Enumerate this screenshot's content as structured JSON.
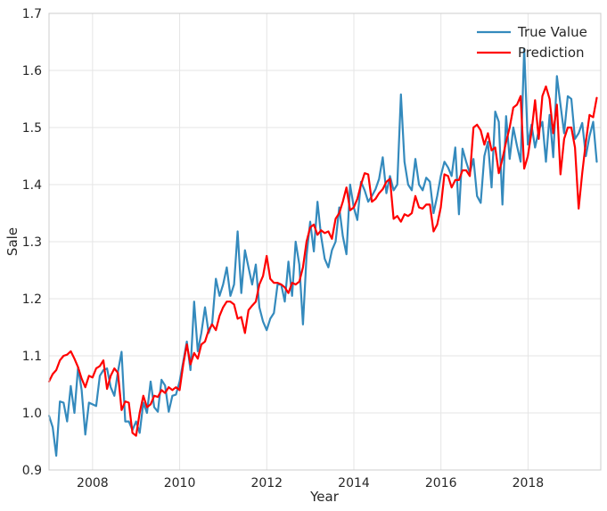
{
  "chart_data": {
    "type": "line",
    "title": "",
    "xlabel": "Year",
    "ylabel": "Sale",
    "xlim": [
      2007.0,
      2019.67
    ],
    "ylim": [
      0.9,
      1.7
    ],
    "x_ticks": [
      2008,
      2010,
      2012,
      2014,
      2016,
      2018
    ],
    "x_tick_labels": [
      "2008",
      "2010",
      "2012",
      "2014",
      "2016",
      "2018"
    ],
    "y_ticks": [
      0.9,
      1.0,
      1.1,
      1.2,
      1.3,
      1.4,
      1.5,
      1.6,
      1.7
    ],
    "y_tick_labels": [
      "0.9",
      "1.0",
      "1.1",
      "1.2",
      "1.3",
      "1.4",
      "1.5",
      "1.6",
      "1.7"
    ],
    "grid": true,
    "legend_position": "top-right",
    "x_start": 2007.0,
    "x_step": 0.0833,
    "series": [
      {
        "name": "True Value",
        "color": "#348abd",
        "values": [
          0.995,
          0.975,
          0.925,
          1.02,
          1.018,
          0.985,
          1.047,
          1.0,
          1.08,
          1.04,
          0.962,
          1.018,
          1.015,
          1.012,
          1.065,
          1.075,
          1.078,
          1.045,
          1.03,
          1.072,
          1.107,
          0.985,
          0.985,
          0.97,
          0.985,
          0.965,
          1.018,
          1.0,
          1.055,
          1.01,
          1.002,
          1.058,
          1.048,
          1.002,
          1.03,
          1.032,
          1.055,
          1.09,
          1.125,
          1.075,
          1.195,
          1.108,
          1.14,
          1.185,
          1.14,
          1.158,
          1.235,
          1.205,
          1.225,
          1.255,
          1.205,
          1.225,
          1.318,
          1.21,
          1.285,
          1.255,
          1.225,
          1.26,
          1.185,
          1.16,
          1.145,
          1.165,
          1.175,
          1.225,
          1.225,
          1.195,
          1.265,
          1.205,
          1.3,
          1.26,
          1.155,
          1.275,
          1.335,
          1.283,
          1.37,
          1.31,
          1.27,
          1.255,
          1.285,
          1.3,
          1.36,
          1.31,
          1.278,
          1.4,
          1.36,
          1.338,
          1.405,
          1.39,
          1.37,
          1.38,
          1.392,
          1.41,
          1.448,
          1.385,
          1.415,
          1.39,
          1.4,
          1.558,
          1.44,
          1.4,
          1.39,
          1.445,
          1.4,
          1.39,
          1.412,
          1.405,
          1.35,
          1.38,
          1.415,
          1.44,
          1.43,
          1.415,
          1.465,
          1.348,
          1.463,
          1.44,
          1.42,
          1.445,
          1.38,
          1.368,
          1.45,
          1.475,
          1.395,
          1.528,
          1.51,
          1.365,
          1.52,
          1.445,
          1.5,
          1.468,
          1.44,
          1.638,
          1.47,
          1.505,
          1.465,
          1.495,
          1.51,
          1.44,
          1.522,
          1.448,
          1.59,
          1.54,
          1.49,
          1.555,
          1.55,
          1.48,
          1.49,
          1.508,
          1.45,
          1.485,
          1.51,
          1.44
        ]
      },
      {
        "name": "Prediction",
        "color": "#ff0000",
        "values": [
          1.055,
          1.068,
          1.075,
          1.092,
          1.1,
          1.102,
          1.108,
          1.095,
          1.08,
          1.06,
          1.045,
          1.065,
          1.062,
          1.078,
          1.082,
          1.092,
          1.042,
          1.065,
          1.078,
          1.07,
          1.005,
          1.02,
          1.018,
          0.965,
          0.96,
          1.0,
          1.03,
          1.01,
          1.015,
          1.03,
          1.028,
          1.04,
          1.035,
          1.045,
          1.04,
          1.045,
          1.04,
          1.085,
          1.12,
          1.085,
          1.105,
          1.095,
          1.12,
          1.125,
          1.145,
          1.155,
          1.145,
          1.17,
          1.185,
          1.195,
          1.195,
          1.19,
          1.165,
          1.168,
          1.14,
          1.18,
          1.188,
          1.195,
          1.225,
          1.24,
          1.275,
          1.235,
          1.228,
          1.228,
          1.225,
          1.22,
          1.21,
          1.228,
          1.225,
          1.23,
          1.255,
          1.3,
          1.325,
          1.33,
          1.312,
          1.32,
          1.315,
          1.318,
          1.305,
          1.34,
          1.35,
          1.37,
          1.395,
          1.355,
          1.36,
          1.375,
          1.4,
          1.42,
          1.418,
          1.37,
          1.375,
          1.385,
          1.392,
          1.405,
          1.41,
          1.34,
          1.345,
          1.335,
          1.348,
          1.345,
          1.35,
          1.38,
          1.36,
          1.358,
          1.365,
          1.365,
          1.318,
          1.33,
          1.36,
          1.418,
          1.415,
          1.395,
          1.408,
          1.408,
          1.425,
          1.425,
          1.415,
          1.5,
          1.505,
          1.495,
          1.47,
          1.49,
          1.46,
          1.465,
          1.42,
          1.445,
          1.475,
          1.5,
          1.535,
          1.54,
          1.555,
          1.428,
          1.45,
          1.492,
          1.548,
          1.48,
          1.555,
          1.572,
          1.55,
          1.49,
          1.54,
          1.418,
          1.48,
          1.5,
          1.5,
          1.465,
          1.358,
          1.42,
          1.475,
          1.522,
          1.518,
          1.552
        ]
      }
    ]
  }
}
